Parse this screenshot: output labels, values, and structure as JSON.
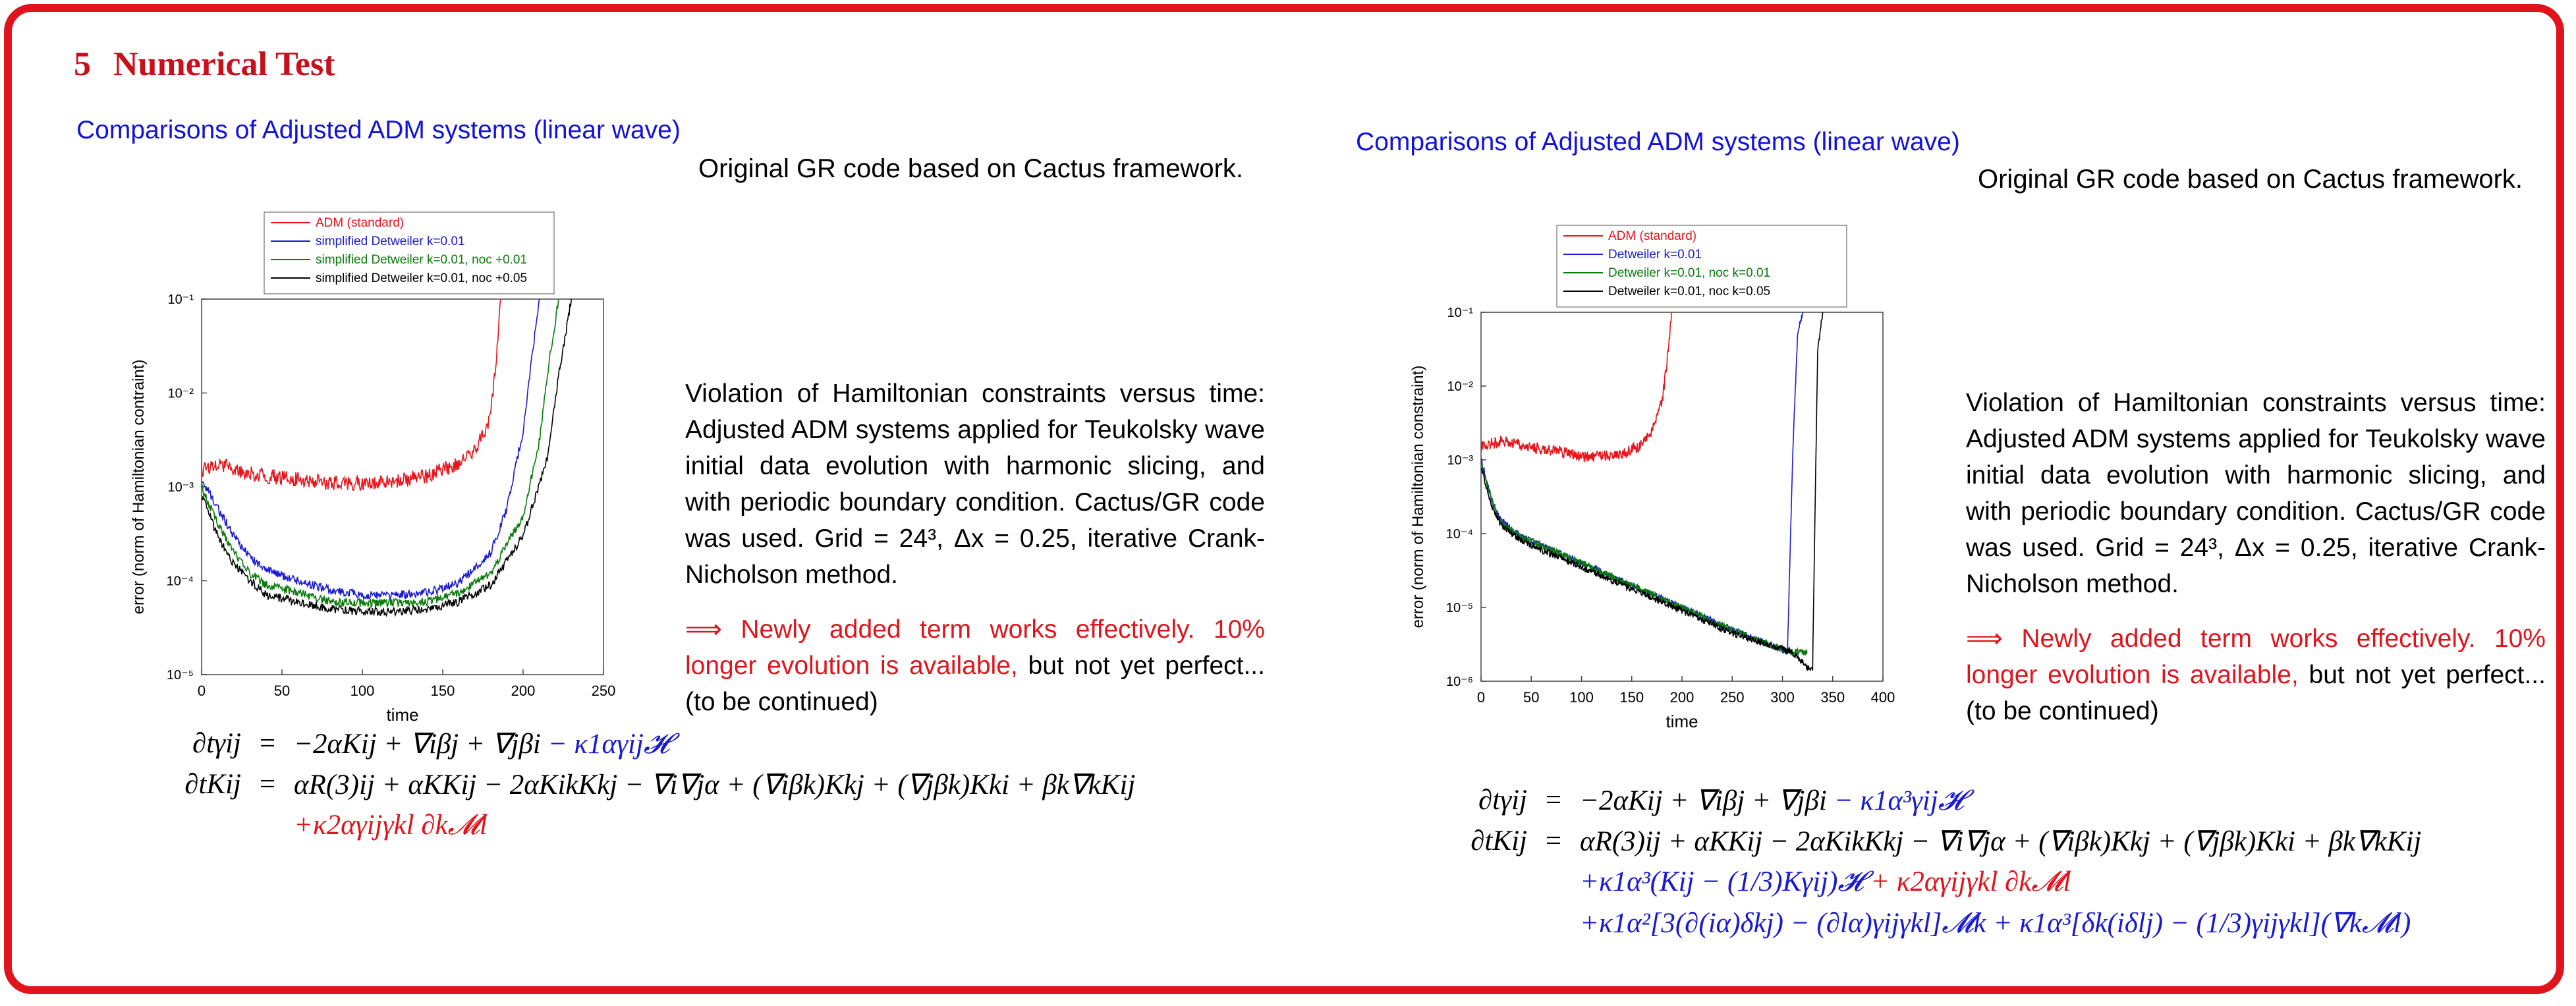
{
  "section": {
    "number": "5",
    "title": "Numerical Test"
  },
  "colors": {
    "accent": "#e0141c",
    "blue": "#1a1ad0",
    "green": "#0a7a0a"
  },
  "left": {
    "subtitle": "Comparisons of Adjusted ADM systems (linear wave)",
    "intro": "Original GR code based on Cactus framework.",
    "caption": "Violation of Hamiltonian constraints versus time: Adjusted ADM systems applied for Teukolsky wave initial data evolution with harmonic slicing, and with periodic boundary condition. Cactus/GR code was used. Grid = 24³, Δx = 0.25, iterative Crank-Nicholson method.",
    "conclusion_red": "⟹ Newly added term works effectively.  10% longer evolution is available,",
    "conclusion_black": " but not yet perfect... (to be continued)",
    "eq1_lhs": "∂tγij",
    "eq1_rhs_black": "−2αKij + ∇iβj + ∇jβi",
    "eq1_rhs_blue": " − κ1αγij𝓗",
    "eq2_lhs": "∂tKij",
    "eq2_rhs": "αR(3)ij + αKKij − 2αKikKkj − ∇i∇jα + (∇iβk)Kkj + (∇jβk)Kki + βk∇kKij",
    "eq3_red": "+κ2αγijγkl ∂k𝓜l",
    "equals": "="
  },
  "right": {
    "subtitle": "Comparisons of Adjusted ADM systems (linear wave)",
    "intro": "Original GR code based on Cactus framework.",
    "caption": "Violation of Hamiltonian constraints versus time: Adjusted ADM systems applied for Teukolsky wave initial data evolution with harmonic slicing, and with periodic boundary condition. Cactus/GR code was used. Grid = 24³, Δx = 0.25, iterative Crank-Nicholson method.",
    "conclusion_red": "⟹ Newly added term works effectively.  10% longer evolution is available,",
    "conclusion_black": " but not yet perfect... (to be continued)",
    "eq1_lhs": "∂tγij",
    "eq1_rhs_black": "−2αKij + ∇iβj + ∇jβi",
    "eq1_rhs_blue": " − κ1α³γij𝓗",
    "eq2_lhs": "∂tKij",
    "eq2_rhs": "αR(3)ij + αKKij − 2αKikKkj − ∇i∇jα + (∇iβk)Kkj + (∇jβk)Kki + βk∇kKij",
    "eq3_blue": "+κ1α³(Kij − (1/3)Kγij)𝓗",
    "eq3_red": " + κ2αγijγkl ∂k𝓜l",
    "eq4_blue": "+κ1α²[3(∂(iα)δkj) − (∂lα)γijγkl]𝓜k + κ1α³[δk(iδlj) − (1/3)γijγkl](∇k𝓜l)",
    "equals": "="
  },
  "chart_data": [
    {
      "type": "line",
      "xlabel": "time",
      "ylabel": "error (norm of Hamiltonian contraint)",
      "xlim": [
        0,
        250
      ],
      "ylim": [
        1e-05,
        0.1
      ],
      "yscale": "log",
      "xticks": [
        0,
        50,
        100,
        150,
        200,
        250
      ],
      "yticks": [
        "10⁻⁵",
        "10⁻⁴",
        "10⁻³",
        "10⁻²",
        "10⁻¹"
      ],
      "legend_position": "top-center",
      "series": [
        {
          "name": "ADM (standard)",
          "color": "#e8141c",
          "x": [
            0,
            10,
            20,
            40,
            60,
            80,
            100,
            120,
            140,
            160,
            170,
            175,
            180,
            183,
            186
          ],
          "y": [
            0.0015,
            0.0018,
            0.0015,
            0.0013,
            0.0012,
            0.0011,
            0.0011,
            0.00115,
            0.0013,
            0.0018,
            0.0025,
            0.0035,
            0.006,
            0.02,
            0.1
          ]
        },
        {
          "name": "simplified Detweiler k=0.01",
          "color": "#1a1ad0",
          "x": [
            0,
            10,
            20,
            30,
            40,
            60,
            80,
            100,
            120,
            140,
            160,
            180,
            190,
            200,
            205,
            210
          ],
          "y": [
            0.0012,
            0.0006,
            0.0003,
            0.00018,
            0.00013,
            0.0001,
            8e-05,
            7e-05,
            7e-05,
            7.5e-05,
            9.5e-05,
            0.0002,
            0.0006,
            0.004,
            0.02,
            0.1
          ]
        },
        {
          "name": "simplified Detweiler k=0.01, noc +0.01",
          "color": "#0a7a0a",
          "x": [
            0,
            10,
            20,
            30,
            40,
            60,
            80,
            100,
            120,
            140,
            160,
            180,
            200,
            210,
            216,
            222
          ],
          "y": [
            0.001,
            0.0004,
            0.0002,
            0.00012,
            9e-05,
            7.5e-05,
            6e-05,
            5.8e-05,
            5.8e-05,
            6e-05,
            7.5e-05,
            0.00012,
            0.0005,
            0.003,
            0.02,
            0.1
          ]
        },
        {
          "name": "simplified Detweiler k=0.01, noc +0.05",
          "color": "#000000",
          "x": [
            0,
            10,
            20,
            30,
            40,
            60,
            80,
            100,
            120,
            140,
            160,
            180,
            200,
            215,
            222,
            230
          ],
          "y": [
            0.0008,
            0.0003,
            0.00015,
            0.0001,
            7e-05,
            6e-05,
            5e-05,
            4.7e-05,
            4.7e-05,
            5e-05,
            6e-05,
            9e-05,
            0.0003,
            0.002,
            0.015,
            0.1
          ]
        }
      ]
    },
    {
      "type": "line",
      "xlabel": "time",
      "ylabel": "error (norm of Hamiltonian constraint)",
      "xlim": [
        0,
        400
      ],
      "ylim": [
        1e-06,
        0.1
      ],
      "yscale": "log",
      "xticks": [
        0,
        50,
        100,
        150,
        200,
        250,
        300,
        350,
        400
      ],
      "yticks": [
        "10⁻⁶",
        "10⁻⁵",
        "10⁻⁴",
        "10⁻³",
        "10⁻²",
        "10⁻¹"
      ],
      "legend_position": "top-center",
      "series": [
        {
          "name": "ADM (standard)",
          "color": "#e8141c",
          "x": [
            0,
            20,
            40,
            60,
            80,
            100,
            120,
            140,
            160,
            170,
            180,
            185,
            190
          ],
          "y": [
            0.0015,
            0.0018,
            0.0016,
            0.0014,
            0.0013,
            0.0011,
            0.0011,
            0.0012,
            0.0016,
            0.0025,
            0.006,
            0.02,
            0.1
          ]
        },
        {
          "name": "Detweiler k=0.01",
          "color": "#1a1ad0",
          "x": [
            0,
            10,
            20,
            40,
            60,
            100,
            150,
            200,
            250,
            290,
            305,
            310,
            315,
            320
          ],
          "y": [
            0.001,
            0.0003,
            0.00015,
            9e-05,
            7e-05,
            4e-05,
            2e-05,
            1e-05,
            5e-06,
            3e-06,
            2.5e-06,
            0.001,
            0.05,
            0.1
          ]
        },
        {
          "name": "Detweiler k=0.01, noc k=0.01",
          "color": "#0a7a0a",
          "x": [
            0,
            10,
            20,
            40,
            60,
            100,
            150,
            200,
            250,
            290,
            310,
            320,
            325
          ],
          "y": [
            0.0009,
            0.0003,
            0.00014,
            9e-05,
            7e-05,
            4e-05,
            2e-05,
            1e-05,
            5e-06,
            3e-06,
            2.5e-06,
            2.5e-06,
            2.5e-06
          ]
        },
        {
          "name": "Detweiler k=0.01, noc k=0.05",
          "color": "#000000",
          "x": [
            0,
            10,
            20,
            40,
            60,
            100,
            150,
            200,
            250,
            290,
            310,
            325,
            330,
            335,
            340
          ],
          "y": [
            0.0008,
            0.00025,
            0.00013,
            8e-05,
            6e-05,
            3.5e-05,
            1.8e-05,
            9e-06,
            4.5e-06,
            3e-06,
            2.5e-06,
            1.5e-06,
            1.5e-06,
            0.03,
            0.1
          ]
        }
      ]
    }
  ]
}
